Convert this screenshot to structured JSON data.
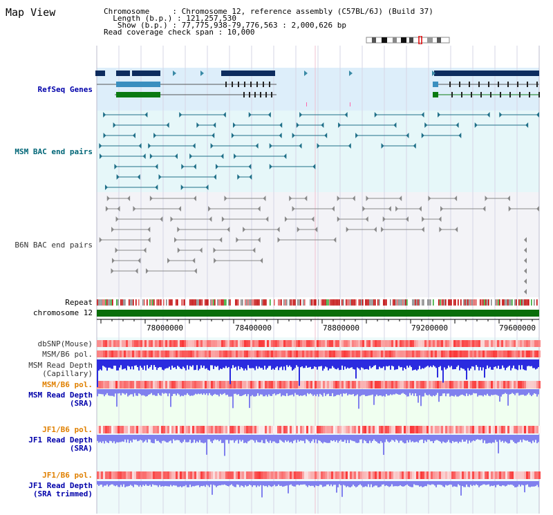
{
  "header": {
    "title": "Map View",
    "info_lines": [
      "Chromosome     : Chromosome 12, reference assembly (C57BL/6J) (Build 37)",
      "  Length (b.p.) : 121,257,530",
      "   Show (b.p.) : 77,775,938-79,776,563 : 2,000,626 bp",
      "Read coverage check span : 10,000"
    ]
  },
  "tracks": {
    "refseq": "RefSeq Genes",
    "msm_bac": "MSM BAC end pairs",
    "b6n_bac": "B6N BAC end pairs",
    "repeat": "Repeat",
    "chromosome": "chromosome 12",
    "dbsnp": "dbSNP(Mouse)",
    "msm_b6_pol_1": "MSM/B6 pol.",
    "msm_depth_cap_1": "MSM Read Depth",
    "msm_depth_cap_2": "(Capillary)",
    "msm_b6_pol_2": "MSM/B6 pol.",
    "msm_depth_sra_1": "MSM Read Depth",
    "msm_depth_sra_2": "(SRA)",
    "jf1_b6_pol_1": "JF1/B6 pol.",
    "jf1_depth_sra_1": "JF1 Read Depth",
    "jf1_depth_sra_2": "(SRA)",
    "jf1_b6_pol_2": "JF1/B6 pol.",
    "jf1_depth_trim_1": "JF1 Read Depth",
    "jf1_depth_trim_2": "(SRA trimmed)"
  },
  "axis": {
    "ticks": [
      "78000000",
      "78400000",
      "78800000",
      "79200000",
      "79600000"
    ]
  },
  "colors": {
    "refseq_band": "#ddeefa",
    "msm_bac_band": "#e6f7f9",
    "b6n_bac_band": "#f3f3f7",
    "depth_blue": "#2b2bdf",
    "depth_light": "#8080ee",
    "label_blue": "#0000aa",
    "label_teal": "#006677",
    "label_orange": "#e08000",
    "chrom_green": "#0a6e0a"
  }
}
